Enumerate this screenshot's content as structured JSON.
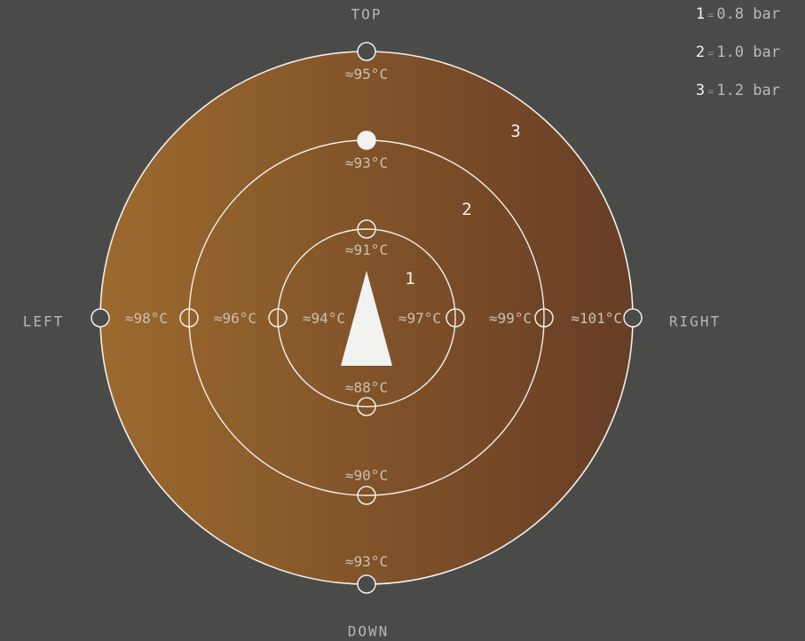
{
  "legend": [
    {
      "key": "1",
      "value": "0.8 bar"
    },
    {
      "key": "2",
      "value": "1.0 bar"
    },
    {
      "key": "3",
      "value": "1.2 bar"
    }
  ],
  "directions": {
    "top": "TOP",
    "left": "LEFT",
    "right": "RIGHT",
    "down": "DOWN"
  },
  "ring_labels": [
    "1",
    "2",
    "3"
  ],
  "colors": {
    "gradient_start": "#9c6a2e",
    "gradient_end": "#673d25",
    "background": "#4a4a49",
    "marker": "#f2f2f0"
  },
  "selected_node": "ring2-top",
  "nodes": {
    "ring1": {
      "top": "≈91°C",
      "left": "≈94°C",
      "right": "≈97°C",
      "down": "≈88°C"
    },
    "ring2": {
      "top": "≈93°C",
      "left": "≈96°C",
      "right": "≈99°C",
      "down": "≈90°C"
    },
    "ring3": {
      "top": "≈95°C",
      "left": "≈98°C",
      "right": "≈101°C",
      "down": "≈93°C"
    }
  },
  "pointer_icon": "triangle-pointer-icon"
}
